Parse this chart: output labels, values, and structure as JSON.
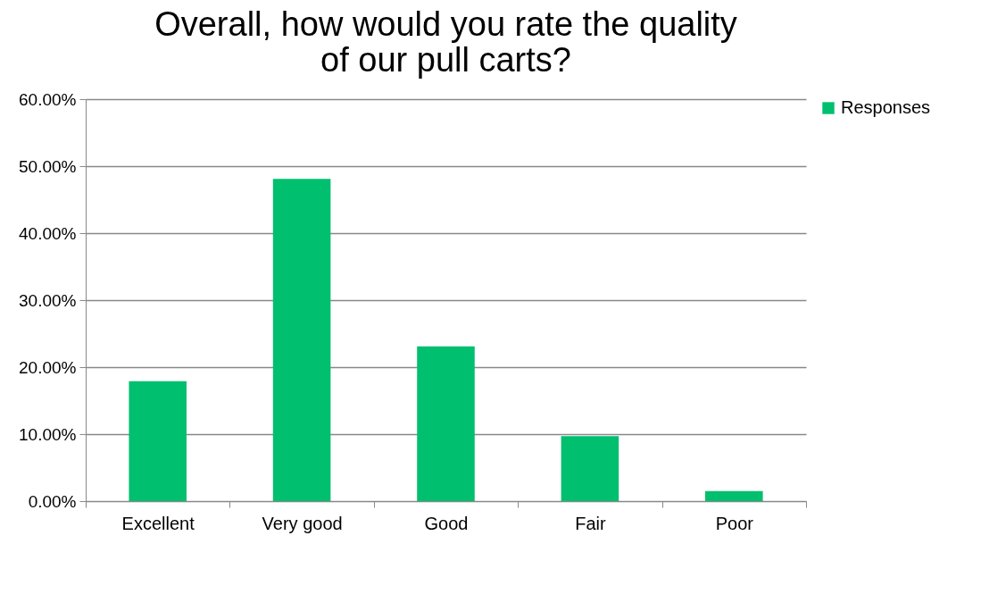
{
  "chart_data": {
    "type": "bar",
    "title": "Overall, how would you rate the quality of our pull carts?",
    "categories": [
      "Excellent",
      "Very good",
      "Good",
      "Fair",
      "Poor"
    ],
    "series": [
      {
        "name": "Responses",
        "color": "#00bf6f",
        "values": [
          17.9,
          48.1,
          23.1,
          9.7,
          1.5
        ]
      }
    ],
    "ylim": [
      0,
      60
    ],
    "yticks": [
      {
        "value": 0,
        "label": "0.00%"
      },
      {
        "value": 10,
        "label": "10.00%"
      },
      {
        "value": 20,
        "label": "20.00%"
      },
      {
        "value": 30,
        "label": "30.00%"
      },
      {
        "value": 40,
        "label": "40.00%"
      },
      {
        "value": 50,
        "label": "50.00%"
      },
      {
        "value": 60,
        "label": "60.00%"
      }
    ],
    "grid": "y",
    "legend": "right"
  }
}
